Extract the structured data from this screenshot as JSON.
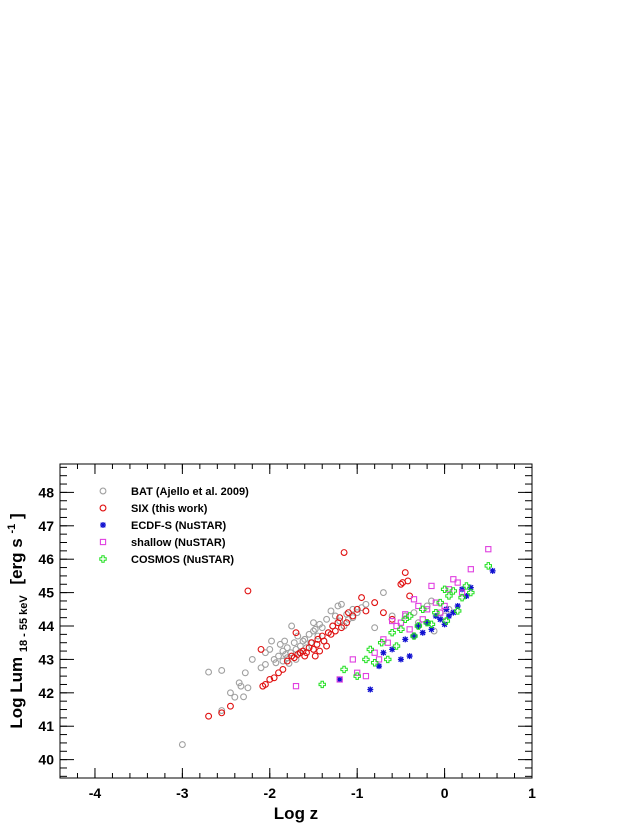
{
  "chart_data": {
    "type": "scatter",
    "xlabel": "Log z",
    "ylabel_main": "Log Lum",
    "ylabel_sub": "18 - 55 keV",
    "ylabel_unit_pre": "[erg s",
    "ylabel_unit_sup": "-1",
    "ylabel_unit_post": "]",
    "xlim": [
      -4.4,
      1.0
    ],
    "ylim": [
      39.45,
      48.85
    ],
    "xticks": [
      -4,
      -3,
      -2,
      -1,
      0,
      1
    ],
    "xtick_labels": [
      "-4",
      "-3",
      "-2",
      "-1",
      "0",
      "1"
    ],
    "yticks": [
      40,
      41,
      42,
      43,
      44,
      45,
      46,
      47,
      48
    ],
    "ytick_labels": [
      "40",
      "41",
      "42",
      "43",
      "44",
      "45",
      "46",
      "47",
      "48"
    ],
    "legend_position": "top-left",
    "grid": false,
    "series": [
      {
        "name": "BAT (Ajello et al. 2009)",
        "marker": "open-circle",
        "color": "#a0a0a0",
        "points": [
          [
            -3.0,
            40.45
          ],
          [
            -2.7,
            42.62
          ],
          [
            -2.55,
            42.67
          ],
          [
            -2.55,
            41.47
          ],
          [
            -2.45,
            42.0
          ],
          [
            -2.4,
            41.87
          ],
          [
            -2.35,
            42.3
          ],
          [
            -2.33,
            42.2
          ],
          [
            -2.3,
            41.88
          ],
          [
            -2.28,
            42.6
          ],
          [
            -2.25,
            42.15
          ],
          [
            -2.2,
            43.0
          ],
          [
            -2.1,
            42.75
          ],
          [
            -2.05,
            43.2
          ],
          [
            -2.05,
            42.85
          ],
          [
            -2.0,
            43.3
          ],
          [
            -1.98,
            43.55
          ],
          [
            -1.95,
            43.0
          ],
          [
            -1.93,
            42.9
          ],
          [
            -1.9,
            43.1
          ],
          [
            -1.88,
            43.45
          ],
          [
            -1.85,
            43.25
          ],
          [
            -1.85,
            42.95
          ],
          [
            -1.83,
            43.55
          ],
          [
            -1.82,
            43.15
          ],
          [
            -1.8,
            43.35
          ],
          [
            -1.8,
            43.05
          ],
          [
            -1.78,
            42.88
          ],
          [
            -1.76,
            43.2
          ],
          [
            -1.75,
            44.0
          ],
          [
            -1.72,
            43.5
          ],
          [
            -1.7,
            43.3
          ],
          [
            -1.7,
            43.0
          ],
          [
            -1.68,
            43.7
          ],
          [
            -1.66,
            43.2
          ],
          [
            -1.65,
            43.4
          ],
          [
            -1.62,
            43.55
          ],
          [
            -1.6,
            43.6
          ],
          [
            -1.58,
            43.35
          ],
          [
            -1.55,
            43.75
          ],
          [
            -1.53,
            43.5
          ],
          [
            -1.5,
            44.1
          ],
          [
            -1.5,
            43.85
          ],
          [
            -1.48,
            43.9
          ],
          [
            -1.45,
            43.7
          ],
          [
            -1.43,
            44.05
          ],
          [
            -1.4,
            43.95
          ],
          [
            -1.38,
            43.55
          ],
          [
            -1.35,
            44.2
          ],
          [
            -1.33,
            43.8
          ],
          [
            -1.3,
            44.45
          ],
          [
            -1.28,
            44.0
          ],
          [
            -1.25,
            44.3
          ],
          [
            -1.22,
            44.6
          ],
          [
            -1.2,
            44.15
          ],
          [
            -1.18,
            44.65
          ],
          [
            -1.15,
            44.0
          ],
          [
            -1.12,
            44.35
          ],
          [
            -1.1,
            44.2
          ],
          [
            -1.05,
            44.5
          ],
          [
            -1.05,
            44.25
          ],
          [
            -1.0,
            44.4
          ],
          [
            -0.95,
            44.55
          ],
          [
            -0.9,
            44.65
          ],
          [
            -0.8,
            43.95
          ],
          [
            -0.7,
            45.0
          ],
          [
            -0.6,
            44.3
          ],
          [
            -0.45,
            44.3
          ],
          [
            -0.35,
            44.4
          ],
          [
            -0.3,
            44.1
          ],
          [
            -0.2,
            44.6
          ],
          [
            -0.15,
            44.75
          ],
          [
            -0.12,
            43.85
          ],
          [
            -0.05,
            44.4
          ],
          [
            0.0,
            44.3
          ],
          [
            0.05,
            44.5
          ]
        ]
      },
      {
        "name": "SIX (this work)",
        "marker": "open-circle",
        "color": "#e01010",
        "points": [
          [
            -2.7,
            41.3
          ],
          [
            -2.55,
            41.4
          ],
          [
            -2.45,
            41.6
          ],
          [
            -2.25,
            45.05
          ],
          [
            -2.1,
            43.3
          ],
          [
            -2.08,
            42.2
          ],
          [
            -2.05,
            42.25
          ],
          [
            -2.0,
            42.4
          ],
          [
            -1.95,
            42.45
          ],
          [
            -1.9,
            42.6
          ],
          [
            -1.85,
            42.7
          ],
          [
            -1.8,
            42.95
          ],
          [
            -1.75,
            43.1
          ],
          [
            -1.72,
            43.05
          ],
          [
            -1.7,
            43.8
          ],
          [
            -1.68,
            43.15
          ],
          [
            -1.65,
            43.2
          ],
          [
            -1.62,
            43.25
          ],
          [
            -1.6,
            43.1
          ],
          [
            -1.58,
            43.2
          ],
          [
            -1.55,
            43.35
          ],
          [
            -1.52,
            43.5
          ],
          [
            -1.5,
            43.3
          ],
          [
            -1.48,
            43.1
          ],
          [
            -1.46,
            43.45
          ],
          [
            -1.45,
            43.6
          ],
          [
            -1.43,
            43.25
          ],
          [
            -1.4,
            43.7
          ],
          [
            -1.38,
            43.55
          ],
          [
            -1.35,
            43.4
          ],
          [
            -1.33,
            43.8
          ],
          [
            -1.3,
            43.75
          ],
          [
            -1.28,
            44.0
          ],
          [
            -1.25,
            43.85
          ],
          [
            -1.22,
            44.1
          ],
          [
            -1.2,
            44.25
          ],
          [
            -1.18,
            43.95
          ],
          [
            -1.15,
            46.2
          ],
          [
            -1.12,
            44.1
          ],
          [
            -1.1,
            44.4
          ],
          [
            -1.05,
            44.3
          ],
          [
            -1.0,
            44.5
          ],
          [
            -0.95,
            44.85
          ],
          [
            -0.9,
            44.45
          ],
          [
            -0.8,
            44.7
          ],
          [
            -0.7,
            44.4
          ],
          [
            -0.6,
            44.2
          ],
          [
            -0.5,
            45.25
          ],
          [
            -0.48,
            45.3
          ],
          [
            -0.45,
            45.6
          ],
          [
            -0.42,
            45.35
          ],
          [
            -0.4,
            44.9
          ]
        ]
      },
      {
        "name": "ECDF-S (NuSTAR)",
        "marker": "star",
        "color": "#1010d0",
        "points": [
          [
            -1.2,
            42.4
          ],
          [
            -0.85,
            42.1
          ],
          [
            -0.75,
            42.8
          ],
          [
            -0.7,
            43.2
          ],
          [
            -0.6,
            43.3
          ],
          [
            -0.5,
            43.0
          ],
          [
            -0.45,
            43.6
          ],
          [
            -0.4,
            43.1
          ],
          [
            -0.35,
            43.7
          ],
          [
            -0.3,
            44.0
          ],
          [
            -0.25,
            43.8
          ],
          [
            -0.2,
            44.1
          ],
          [
            -0.15,
            43.9
          ],
          [
            -0.1,
            44.3
          ],
          [
            -0.05,
            44.2
          ],
          [
            0.0,
            44.05
          ],
          [
            0.02,
            44.5
          ],
          [
            0.05,
            44.3
          ],
          [
            0.1,
            44.4
          ],
          [
            0.15,
            44.6
          ],
          [
            0.2,
            45.1
          ],
          [
            0.25,
            44.9
          ],
          [
            0.3,
            45.15
          ],
          [
            0.55,
            45.65
          ]
        ]
      },
      {
        "name": "shallow (NuSTAR)",
        "marker": "open-square",
        "color": "#e040e0",
        "points": [
          [
            -1.7,
            42.2
          ],
          [
            -1.2,
            42.4
          ],
          [
            -1.05,
            43.0
          ],
          [
            -1.0,
            42.6
          ],
          [
            -0.9,
            42.5
          ],
          [
            -0.8,
            43.2
          ],
          [
            -0.75,
            43.0
          ],
          [
            -0.7,
            43.6
          ],
          [
            -0.65,
            43.5
          ],
          [
            -0.6,
            44.15
          ],
          [
            -0.55,
            44.0
          ],
          [
            -0.5,
            44.1
          ],
          [
            -0.45,
            44.35
          ],
          [
            -0.4,
            43.9
          ],
          [
            -0.35,
            44.8
          ],
          [
            -0.3,
            44.6
          ],
          [
            -0.25,
            44.2
          ],
          [
            -0.2,
            44.5
          ],
          [
            -0.15,
            45.2
          ],
          [
            -0.1,
            44.7
          ],
          [
            -0.05,
            44.4
          ],
          [
            0.0,
            44.6
          ],
          [
            0.05,
            45.1
          ],
          [
            0.1,
            45.4
          ],
          [
            0.15,
            45.3
          ],
          [
            0.2,
            45.0
          ],
          [
            0.3,
            45.7
          ],
          [
            0.5,
            46.3
          ]
        ]
      },
      {
        "name": "COSMOS (NuSTAR)",
        "marker": "open-cross",
        "color": "#20e020",
        "points": [
          [
            -1.4,
            42.25
          ],
          [
            -1.15,
            42.7
          ],
          [
            -1.0,
            42.5
          ],
          [
            -0.9,
            43.0
          ],
          [
            -0.85,
            43.3
          ],
          [
            -0.8,
            42.9
          ],
          [
            -0.72,
            43.5
          ],
          [
            -0.65,
            43.0
          ],
          [
            -0.6,
            43.8
          ],
          [
            -0.55,
            43.4
          ],
          [
            -0.5,
            43.9
          ],
          [
            -0.45,
            44.2
          ],
          [
            -0.4,
            44.3
          ],
          [
            -0.35,
            43.7
          ],
          [
            -0.3,
            44.0
          ],
          [
            -0.25,
            44.5
          ],
          [
            -0.2,
            44.1
          ],
          [
            -0.15,
            44.05
          ],
          [
            -0.1,
            44.4
          ],
          [
            -0.05,
            44.7
          ],
          [
            0.0,
            45.1
          ],
          [
            0.02,
            44.15
          ],
          [
            0.05,
            44.9
          ],
          [
            0.1,
            45.05
          ],
          [
            0.15,
            44.45
          ],
          [
            0.2,
            44.85
          ],
          [
            0.25,
            45.2
          ],
          [
            0.3,
            45.0
          ],
          [
            0.5,
            45.8
          ]
        ]
      }
    ]
  }
}
